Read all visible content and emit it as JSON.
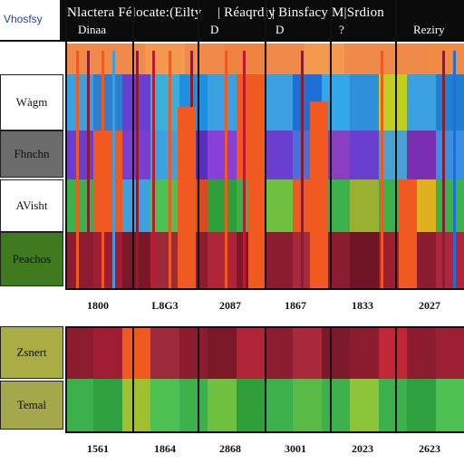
{
  "header": {
    "corner_label": "Vhosfsy",
    "title_left": "Nlactera Félocate:(Eilty",
    "title_mid": "| Réaqrdiy",
    "title_right": "| Binsfacy M|Srdion",
    "sub_labels": [
      "Dinaa",
      "D",
      "D",
      "?",
      "Reziry"
    ]
  },
  "rows": {
    "labels": [
      "Wàgm",
      "Fhnchn",
      "AVisht",
      "Peachos",
      "Zsnert",
      "Temal"
    ],
    "label_colors": [
      "#ffffff",
      "#6c6c6c",
      "#ffffff",
      "#3f7a1e",
      "#a9ad44",
      "#a5a84a"
    ]
  },
  "axis_top": {
    "ticks": [
      "1800",
      "L8G3",
      "2087",
      "1867",
      "1833",
      "2027"
    ]
  },
  "axis_bottom": {
    "ticks": [
      "1561",
      "1864",
      "2868",
      "3001",
      "2023",
      "2623"
    ]
  },
  "colors": {
    "header_bg": "#0b0b0b",
    "top_band": "#f08a4a",
    "blue": "#3aa0e0",
    "purple": "#6a3fcf",
    "green": "#3cb04a",
    "maroon": "#8c1d30",
    "orange": "#f05a20"
  }
}
